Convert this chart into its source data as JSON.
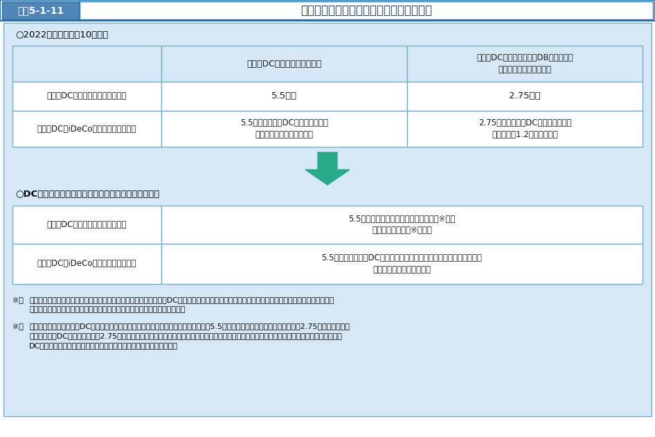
{
  "title_text": "図表5-1-11",
  "title_main": "企業型・個人型確定拠出年金の拠出限度額",
  "title_left_bg": "#4f86b8",
  "title_right_bg": "#ffffff",
  "title_border": "#2e6ea6",
  "title_text_color": "#1a3a5c",
  "bg_color": "#d6e8f5",
  "white": "#ffffff",
  "border_color": "#7aaccc",
  "section1_label": "○2022（令和４）年10月以降",
  "section2_label": "○DC拠出限度額に確定給付型の事業主掛金額を反映後",
  "table1_col_headers": [
    "企業型DCのみに加入する場合",
    "企業型DCと確定給付型（DB、厚生年金\n基金等）に加入する場合"
  ],
  "table1_row_headers": [
    "企業型DCの事業主掛金額（月額）",
    "個人型DC（iDeCo）の掛金額（月額）"
  ],
  "table1_cells": [
    [
      "5.5万円",
      "2.75万円"
    ],
    [
      "5.5万円－企業型DCの事業主掛金額\n（ただし、２万円を上限）",
      "2.75万円－企業型DCの事業主掛金額\n（ただし、1.2万円を上限）"
    ]
  ],
  "table2_row_headers": [
    "企業型DCの事業主掛金額（月額）",
    "個人型DC（iDeCo）の掛金額（月額）"
  ],
  "table2_cells": [
    [
      "5.5万円－確定給付型の事業主掛金額（※１）\n（経過措置あり（※２））"
    ],
    [
      "5.5万円－（企業型DCの事業主掛金額＋確定給付型の事業主掛金額）\n（ただし、２万円を上限）"
    ]
  ],
  "footnote1_label": "※１",
  "footnote1_text": "確定給付型の事業主掛金額は、確定給付型ごとにその給付水準からDCと比較可能な形で評価したもの（仮想掛金額）で、複数の確定給付型に加入\nしている場合は合算。確定給付型には、公務員の年金払い退職給付を含む。",
  "footnote2_label": "※２",
  "footnote2_text": "施行日の時点で、企業型DCと確定給付型を併せて実施している事業主については、「5.5万円－確定給付型の事業主掛金額」が2.75万円を下回ると\nきは、企業型DCの拠出限度額を2.75万円とし、施行日前の既存規約に基づいた従前の掛金拠出が可能。ただし、施行日以後、確定給付型・企業型\nDCの設計を見直した場合は、新たな拠出限度額を適用。【経過措置】"
}
